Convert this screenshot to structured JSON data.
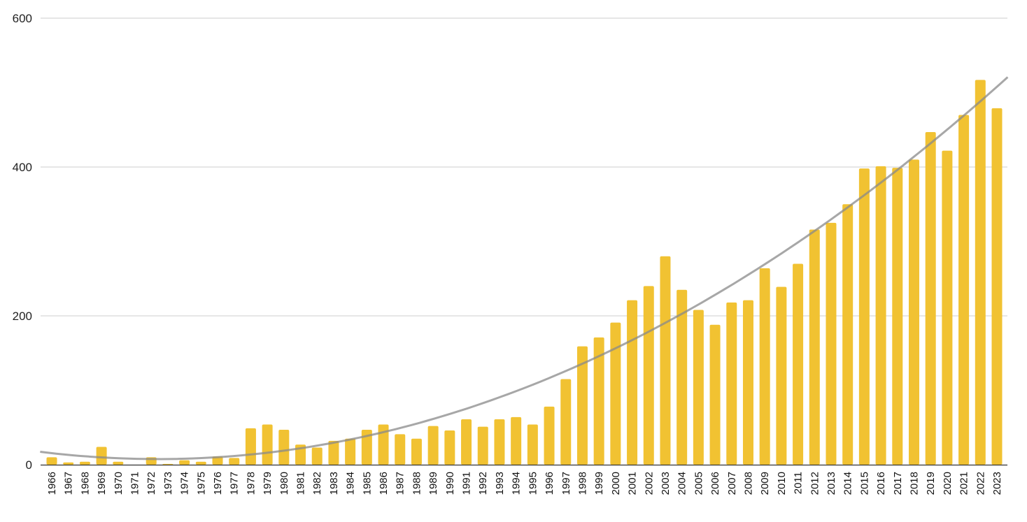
{
  "chart_data": {
    "type": "bar",
    "title": "",
    "xlabel": "",
    "ylabel": "",
    "ylim": [
      0,
      600
    ],
    "y_ticks": [
      "0",
      "200",
      "400",
      "600"
    ],
    "grid": true,
    "bar_color": "#F1C232",
    "trend_color": "#8A8A8A",
    "trendline": "polynomial (quadratic)",
    "categories": [
      "1966",
      "1967",
      "1968",
      "1969",
      "1970",
      "1971",
      "1972",
      "1973",
      "1974",
      "1975",
      "1976",
      "1977",
      "1978",
      "1979",
      "1980",
      "1981",
      "1982",
      "1983",
      "1984",
      "1985",
      "1986",
      "1987",
      "1988",
      "1989",
      "1990",
      "1991",
      "1992",
      "1993",
      "1994",
      "1995",
      "1996",
      "1997",
      "1998",
      "1999",
      "2000",
      "2001",
      "2002",
      "2003",
      "2004",
      "2005",
      "2006",
      "2007",
      "2008",
      "2009",
      "2010",
      "2011",
      "2012",
      "2013",
      "2014",
      "2015",
      "2016",
      "2017",
      "2018",
      "2019",
      "2020",
      "2021",
      "2022",
      "2023"
    ],
    "values": [
      10,
      3,
      4,
      24,
      4,
      0,
      10,
      1,
      6,
      4,
      11,
      9,
      49,
      54,
      47,
      27,
      23,
      32,
      35,
      47,
      54,
      41,
      35,
      52,
      46,
      61,
      51,
      61,
      64,
      54,
      78,
      115,
      159,
      171,
      191,
      221,
      240,
      280,
      235,
      208,
      188,
      218,
      221,
      264,
      239,
      270,
      316,
      325,
      350,
      398,
      401,
      399,
      410,
      447,
      422,
      470,
      517,
      479
    ]
  }
}
